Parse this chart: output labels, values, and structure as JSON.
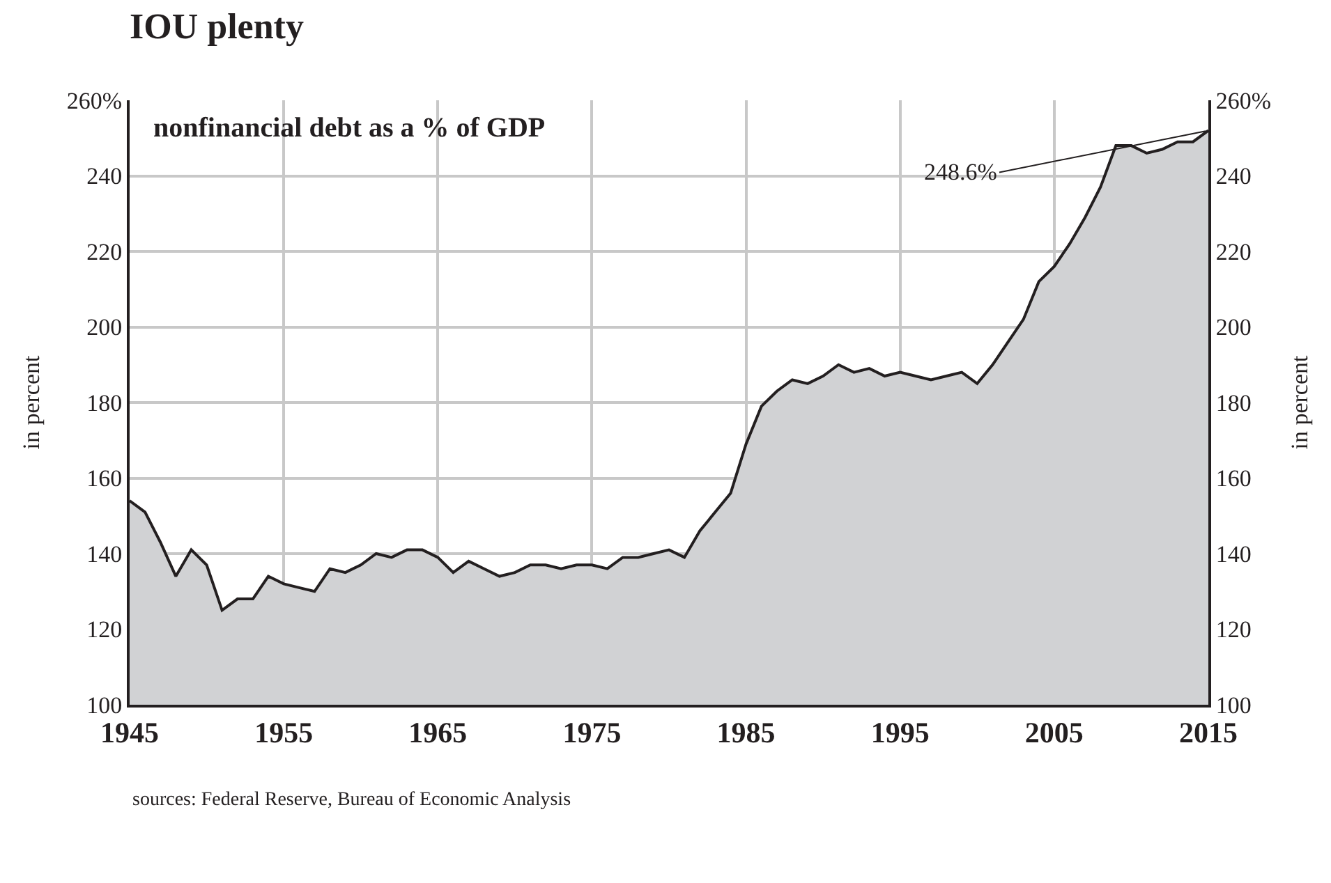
{
  "chart_data": {
    "type": "area",
    "title": "IOU plenty",
    "subtitle": "nonfinancial debt as a % of GDP",
    "ylabel": "in percent",
    "y2label": "in percent",
    "x": [
      1945,
      1946,
      1947,
      1948,
      1949,
      1950,
      1951,
      1952,
      1953,
      1954,
      1955,
      1956,
      1957,
      1958,
      1959,
      1960,
      1961,
      1962,
      1963,
      1964,
      1965,
      1966,
      1967,
      1968,
      1969,
      1970,
      1971,
      1972,
      1973,
      1974,
      1975,
      1976,
      1977,
      1978,
      1979,
      1980,
      1981,
      1982,
      1983,
      1984,
      1985,
      1986,
      1987,
      1988,
      1989,
      1990,
      1991,
      1992,
      1993,
      1994,
      1995,
      1996,
      1997,
      1998,
      1999,
      2000,
      2001,
      2002,
      2003,
      2004,
      2005,
      2006,
      2007,
      2008,
      2009,
      2010,
      2011,
      2012,
      2013,
      2014,
      2015
    ],
    "series": [
      {
        "color": "#d1d2d4",
        "values": [
          154,
          151,
          143,
          134,
          141,
          137,
          125,
          128,
          128,
          134,
          132,
          131,
          130,
          136,
          135,
          137,
          140,
          139,
          141,
          141,
          139,
          135,
          138,
          136,
          134,
          135,
          137,
          137,
          136,
          137,
          137,
          136,
          139,
          139,
          140,
          141,
          139,
          146,
          151,
          156,
          169,
          179,
          183,
          186,
          185,
          187,
          190,
          188,
          189,
          187,
          188,
          187,
          186,
          187,
          188,
          185,
          190,
          196,
          202,
          212,
          216,
          222,
          229,
          237,
          248,
          248,
          246,
          247,
          249,
          249,
          252
        ]
      }
    ],
    "xlim": [
      1945,
      2015
    ],
    "xticks": [
      1945,
      1955,
      1965,
      1975,
      1985,
      1995,
      2005,
      2015
    ],
    "ylim": [
      100,
      260
    ],
    "yticks": [
      100,
      120,
      140,
      160,
      180,
      200,
      220,
      240,
      {
        "value": 260,
        "label": "260%"
      }
    ],
    "y2lim": [
      100,
      260
    ],
    "y2ticks": [
      100,
      120,
      140,
      160,
      180,
      200,
      220,
      240,
      {
        "value": 260,
        "label": "260%"
      }
    ],
    "grid": true,
    "annotations": [
      {
        "text": "248.6%",
        "x": 2015,
        "y": 252
      },
      "sources: Federal Reserve, Bureau of Economic Analysis"
    ]
  }
}
